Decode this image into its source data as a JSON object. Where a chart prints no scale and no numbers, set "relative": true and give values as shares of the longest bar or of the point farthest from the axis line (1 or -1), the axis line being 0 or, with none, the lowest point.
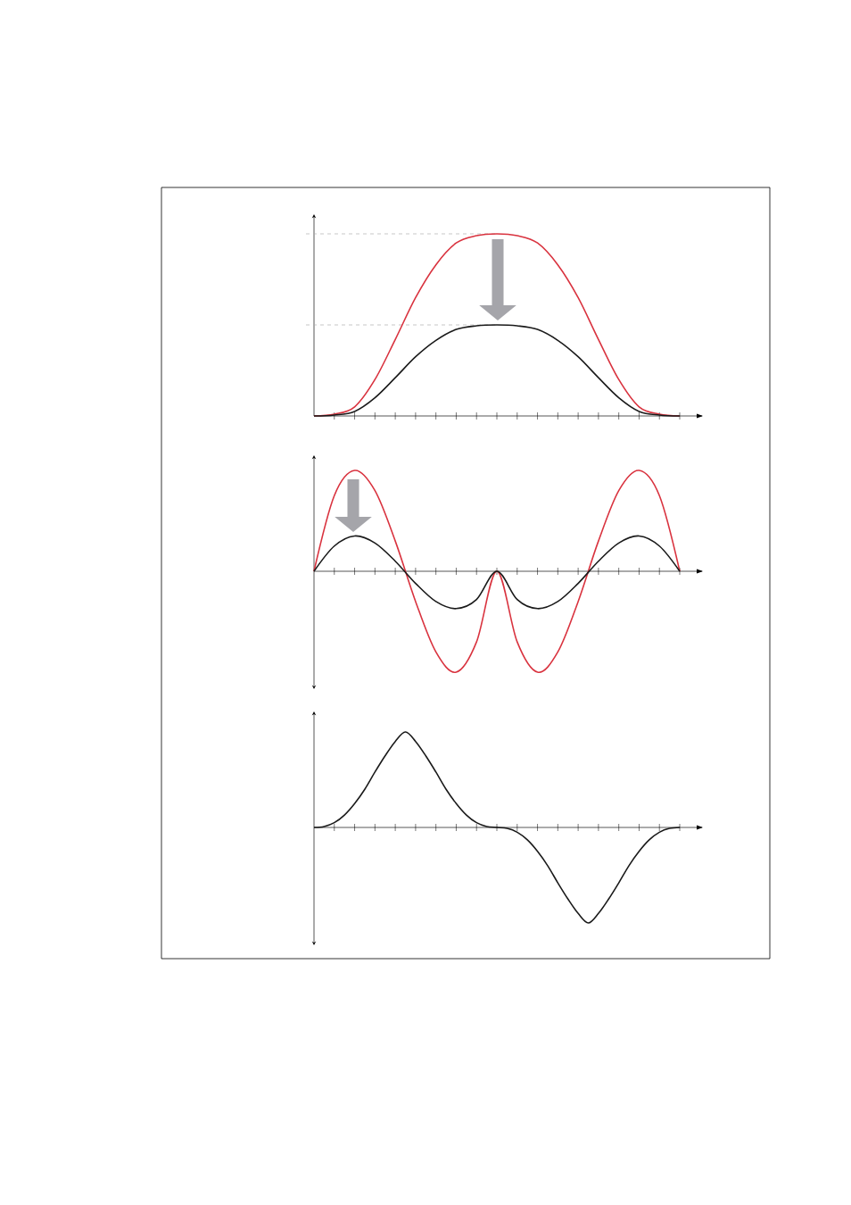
{
  "chart_data": [
    {
      "type": "line",
      "relative": true,
      "categories": [
        null,
        null,
        null,
        null,
        null,
        null,
        null,
        null,
        null,
        null,
        null,
        null,
        null,
        null,
        null,
        null,
        null,
        null,
        null
      ],
      "ref_lines": [
        {
          "axis": "y",
          "value": 1,
          "color": "#aaaaaa",
          "line_style": "dashed"
        },
        {
          "axis": "y",
          "value": 0.5,
          "color": "#aaaaaa",
          "line_style": "dashed"
        }
      ],
      "series": [
        {
          "color": "#d9333f",
          "values": [
            0,
            0.01,
            0.05,
            0.2,
            0.42,
            0.65,
            0.83,
            0.95,
            0.99,
            1,
            0.99,
            0.95,
            0.83,
            0.65,
            0.42,
            0.2,
            0.05,
            0.01,
            0
          ]
        },
        {
          "color": "#1a1a1a",
          "values": [
            0,
            0.005,
            0.025,
            0.1,
            0.21,
            0.325,
            0.415,
            0.475,
            0.495,
            0.5,
            0.495,
            0.475,
            0.415,
            0.325,
            0.21,
            0.1,
            0.025,
            0.005,
            0
          ]
        }
      ]
    },
    {
      "type": "line",
      "relative": true,
      "categories": [
        null,
        null,
        null,
        null,
        null,
        null,
        null,
        null,
        null,
        null,
        null,
        null,
        null,
        null,
        null,
        null,
        null,
        null,
        null
      ],
      "series": [
        {
          "color": "#d9333f",
          "values": [
            0,
            0.75,
            1,
            0.8,
            0.3,
            -0.3,
            -0.8,
            -1,
            -0.7,
            0,
            -0.7,
            -1,
            -0.8,
            -0.3,
            0.3,
            0.8,
            1,
            0.75,
            0
          ]
        },
        {
          "color": "#1a1a1a",
          "values": [
            0,
            0.25,
            0.35,
            0.28,
            0.1,
            -0.12,
            -0.3,
            -0.37,
            -0.28,
            0,
            -0.28,
            -0.37,
            -0.3,
            -0.12,
            0.1,
            0.28,
            0.35,
            0.25,
            0
          ]
        }
      ]
    },
    {
      "type": "line",
      "relative": true,
      "categories": [
        null,
        null,
        null,
        null,
        null,
        null,
        null,
        null,
        null,
        null,
        null,
        null,
        null,
        null,
        null,
        null,
        null,
        null,
        null,
        null,
        null,
        null,
        null,
        null,
        null,
        null,
        null,
        null,
        null,
        null,
        null,
        null,
        null,
        null,
        null,
        null,
        null
      ],
      "series": [
        {
          "color": "#1a1a1a",
          "values": [
            0,
            0.01,
            0.05,
            0.13,
            0.25,
            0.4,
            0.58,
            0.75,
            0.9,
            1,
            0.9,
            0.75,
            0.58,
            0.4,
            0.25,
            0.13,
            0.05,
            0.01,
            0,
            -0.01,
            -0.05,
            -0.13,
            -0.25,
            -0.4,
            -0.58,
            -0.75,
            -0.9,
            -1,
            -0.9,
            -0.75,
            -0.58,
            -0.4,
            -0.25,
            -0.13,
            -0.05,
            -0.01,
            0
          ]
        }
      ]
    }
  ]
}
